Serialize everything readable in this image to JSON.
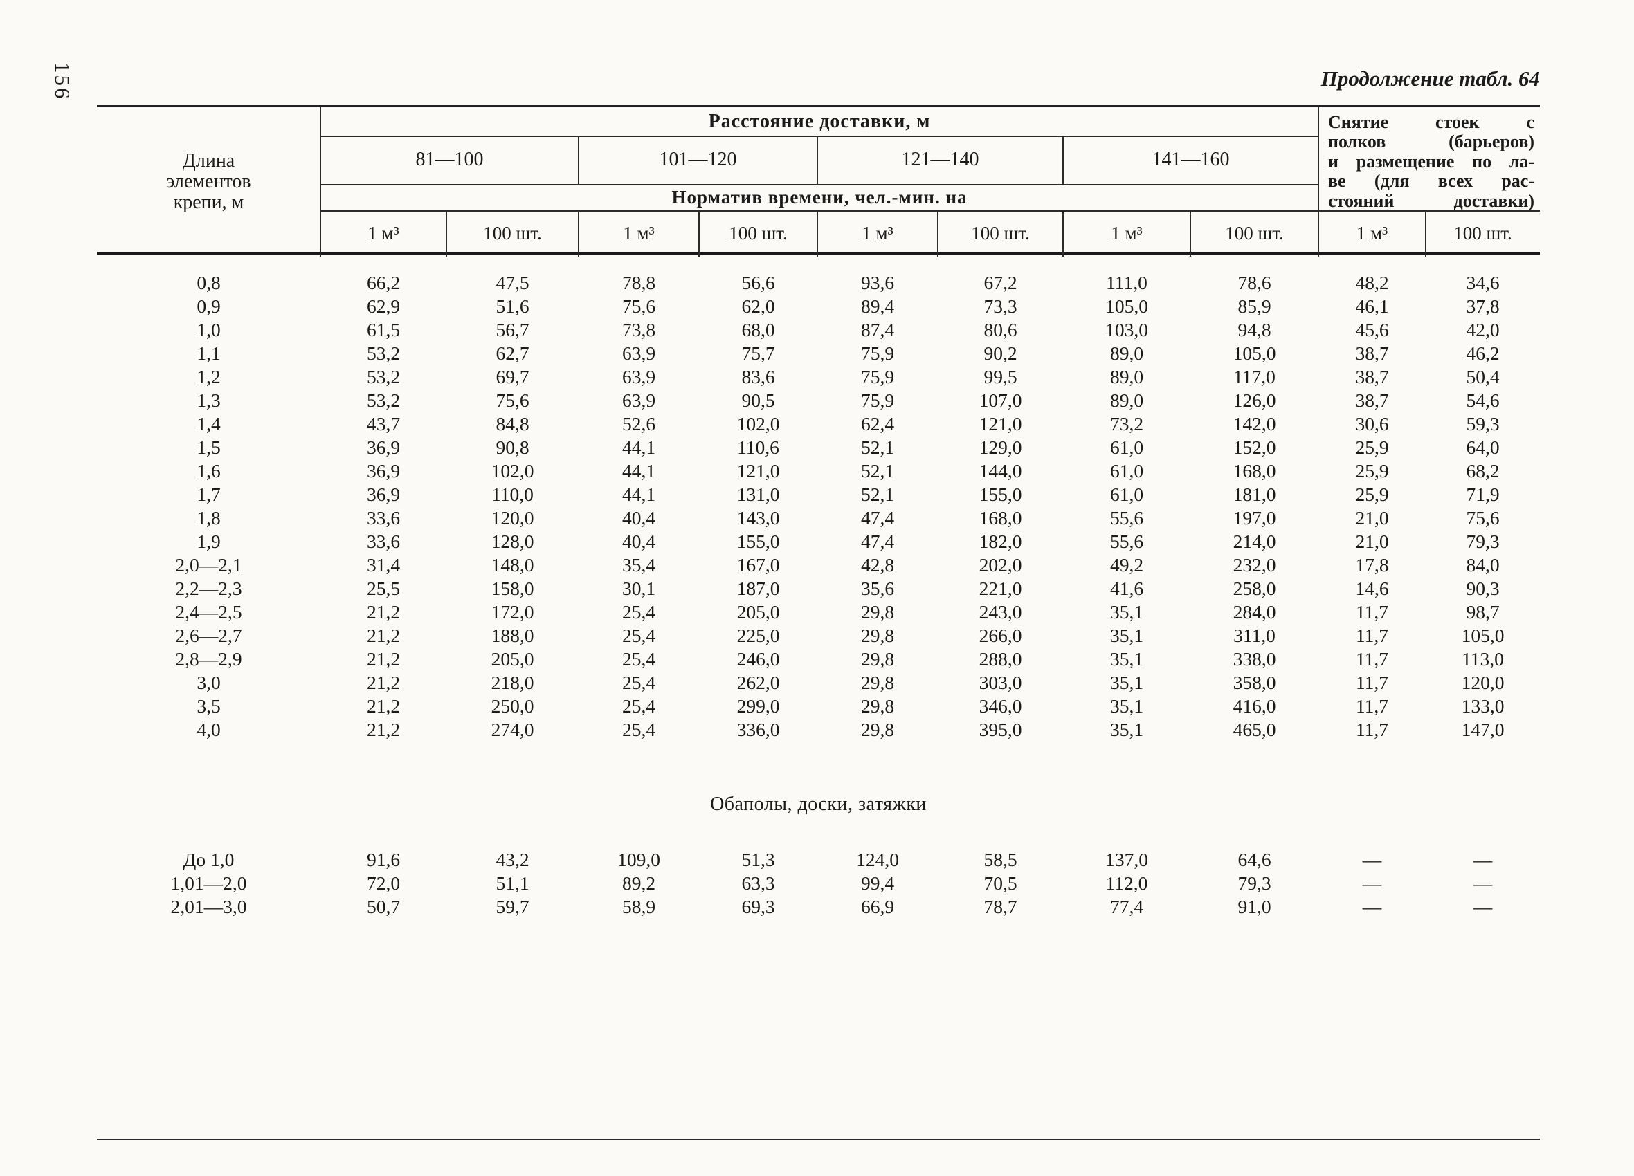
{
  "page": {
    "number": "156",
    "caption": "Продолжение табл. 64"
  },
  "table": {
    "stub_header": "Длина элементов крепи, м",
    "distance_header": "Расстояние доставки, м",
    "distance_ranges": [
      "81—100",
      "101—120",
      "121—140",
      "141—160"
    ],
    "norm_header": "Норматив времени, чел.-мин. на",
    "units_row": [
      "1 м³",
      "100 шт.",
      "1 м³",
      "100 шт.",
      "1 м³",
      "100 шт.",
      "1 м³",
      "100 шт.",
      "1 м³",
      "100 шт."
    ],
    "removal_header_lines": [
      "Снятие стоек с",
      "полков (барьеров)",
      "и размещение по ла-",
      "ве (для всех рас-",
      "стояний доставки)"
    ],
    "sections": [
      {
        "title": "",
        "rows": [
          [
            "0,8",
            "66,2",
            "47,5",
            "78,8",
            "56,6",
            "93,6",
            "67,2",
            "111,0",
            "78,6",
            "48,2",
            "34,6"
          ],
          [
            "0,9",
            "62,9",
            "51,6",
            "75,6",
            "62,0",
            "89,4",
            "73,3",
            "105,0",
            "85,9",
            "46,1",
            "37,8"
          ],
          [
            "1,0",
            "61,5",
            "56,7",
            "73,8",
            "68,0",
            "87,4",
            "80,6",
            "103,0",
            "94,8",
            "45,6",
            "42,0"
          ],
          [
            "1,1",
            "53,2",
            "62,7",
            "63,9",
            "75,7",
            "75,9",
            "90,2",
            "89,0",
            "105,0",
            "38,7",
            "46,2"
          ],
          [
            "1,2",
            "53,2",
            "69,7",
            "63,9",
            "83,6",
            "75,9",
            "99,5",
            "89,0",
            "117,0",
            "38,7",
            "50,4"
          ],
          [
            "1,3",
            "53,2",
            "75,6",
            "63,9",
            "90,5",
            "75,9",
            "107,0",
            "89,0",
            "126,0",
            "38,7",
            "54,6"
          ],
          [
            "1,4",
            "43,7",
            "84,8",
            "52,6",
            "102,0",
            "62,4",
            "121,0",
            "73,2",
            "142,0",
            "30,6",
            "59,3"
          ],
          [
            "1,5",
            "36,9",
            "90,8",
            "44,1",
            "110,6",
            "52,1",
            "129,0",
            "61,0",
            "152,0",
            "25,9",
            "64,0"
          ],
          [
            "1,6",
            "36,9",
            "102,0",
            "44,1",
            "121,0",
            "52,1",
            "144,0",
            "61,0",
            "168,0",
            "25,9",
            "68,2"
          ],
          [
            "1,7",
            "36,9",
            "110,0",
            "44,1",
            "131,0",
            "52,1",
            "155,0",
            "61,0",
            "181,0",
            "25,9",
            "71,9"
          ],
          [
            "1,8",
            "33,6",
            "120,0",
            "40,4",
            "143,0",
            "47,4",
            "168,0",
            "55,6",
            "197,0",
            "21,0",
            "75,6"
          ],
          [
            "1,9",
            "33,6",
            "128,0",
            "40,4",
            "155,0",
            "47,4",
            "182,0",
            "55,6",
            "214,0",
            "21,0",
            "79,3"
          ],
          [
            "2,0—2,1",
            "31,4",
            "148,0",
            "35,4",
            "167,0",
            "42,8",
            "202,0",
            "49,2",
            "232,0",
            "17,8",
            "84,0"
          ],
          [
            "2,2—2,3",
            "25,5",
            "158,0",
            "30,1",
            "187,0",
            "35,6",
            "221,0",
            "41,6",
            "258,0",
            "14,6",
            "90,3"
          ],
          [
            "2,4—2,5",
            "21,2",
            "172,0",
            "25,4",
            "205,0",
            "29,8",
            "243,0",
            "35,1",
            "284,0",
            "11,7",
            "98,7"
          ],
          [
            "2,6—2,7",
            "21,2",
            "188,0",
            "25,4",
            "225,0",
            "29,8",
            "266,0",
            "35,1",
            "311,0",
            "11,7",
            "105,0"
          ],
          [
            "2,8—2,9",
            "21,2",
            "205,0",
            "25,4",
            "246,0",
            "29,8",
            "288,0",
            "35,1",
            "338,0",
            "11,7",
            "113,0"
          ],
          [
            "3,0",
            "21,2",
            "218,0",
            "25,4",
            "262,0",
            "29,8",
            "303,0",
            "35,1",
            "358,0",
            "11,7",
            "120,0"
          ],
          [
            "3,5",
            "21,2",
            "250,0",
            "25,4",
            "299,0",
            "29,8",
            "346,0",
            "35,1",
            "416,0",
            "11,7",
            "133,0"
          ],
          [
            "4,0",
            "21,2",
            "274,0",
            "25,4",
            "336,0",
            "29,8",
            "395,0",
            "35,1",
            "465,0",
            "11,7",
            "147,0"
          ]
        ]
      },
      {
        "title": "Обаполы, доски, затяжки",
        "rows": [
          [
            "До 1,0",
            "91,6",
            "43,2",
            "109,0",
            "51,3",
            "124,0",
            "58,5",
            "137,0",
            "64,6",
            "—",
            "—"
          ],
          [
            "1,01—2,0",
            "72,0",
            "51,1",
            "89,2",
            "63,3",
            "99,4",
            "70,5",
            "112,0",
            "79,3",
            "—",
            "—"
          ],
          [
            "2,01—3,0",
            "50,7",
            "59,7",
            "58,9",
            "69,3",
            "66,9",
            "78,7",
            "77,4",
            "91,0",
            "—",
            "—"
          ]
        ]
      }
    ]
  }
}
